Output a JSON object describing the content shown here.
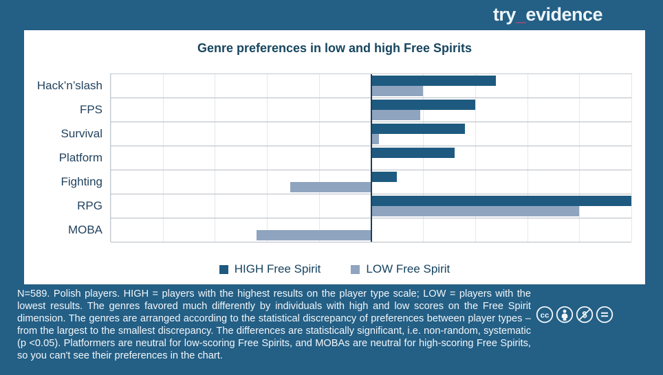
{
  "brand": {
    "logo_try": "try",
    "logo_underscore": "_",
    "logo_evidence": "evidence"
  },
  "chart_data": {
    "type": "bar",
    "orientation": "horizontal",
    "title": "Genre preferences in low and high Free Spirits",
    "categories": [
      "Hack’n’slash",
      "FPS",
      "Survival",
      "Platform",
      "Fighting",
      "RPG",
      "MOBA"
    ],
    "series": [
      {
        "name": "HIGH Free Spirit",
        "color": "#1e5a7f",
        "values": [
          2.4,
          2.0,
          1.8,
          1.6,
          0.5,
          5.0,
          0
        ]
      },
      {
        "name": "LOW Free Spirit",
        "color": "#8fa4bf",
        "values": [
          1.0,
          0.95,
          0.15,
          0,
          -1.55,
          4.0,
          -2.2
        ]
      }
    ],
    "xlim": [
      -5,
      5
    ],
    "x_tick_labels_visible": false,
    "grid": true,
    "legend_position": "bottom"
  },
  "footer": {
    "note": "N=589. Polish players. HIGH = players with the highest results on the player type scale; LOW = players with the lowest results. The genres favored much differently by individuals with high and low scores on the Free Spirit dimension. The genres are arranged according to the statistical discrepancy of preferences between player types – from the largest to the smallest discrepancy. The differences are statistically significant, i.e. non-random, systematic (p <0.05). Platformers are neutral for low-scoring Free Spirits, and MOBAs are neutral for high-scoring Free Spirits, so you can't see their preferences in the chart.",
    "license_icons": [
      "cc",
      "by",
      "nc",
      "nd"
    ]
  },
  "colors": {
    "background": "#245f85",
    "card": "#ffffff",
    "high_bar": "#1e5a7f",
    "low_bar": "#8fa4bf",
    "title_text": "#17465f",
    "accent_pink": "#e0436f",
    "zero_line": "#1c3e57"
  }
}
